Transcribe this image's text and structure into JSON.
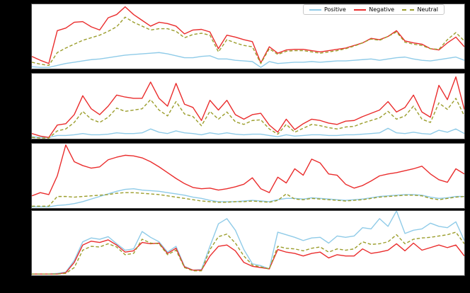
{
  "figure": {
    "background_color": "#000000",
    "panel_color": "#ffffff",
    "note": "Four vertically stacked line subplots. No titles, axis labels or tick labels are visible (figure margins are solid black).",
    "legend": {
      "position": "top-right",
      "items": [
        {
          "label": "Positive",
          "color": "#8fcbe8",
          "line_style": "solid"
        },
        {
          "label": "Negative",
          "color": "#ea2c2c",
          "line_style": "solid"
        },
        {
          "label": "Neutral",
          "color": "#9b9d2b",
          "line_style": "dashed"
        }
      ]
    }
  },
  "chart_data": [
    {
      "type": "line",
      "panel": "row 1 of 4",
      "x_count": 52,
      "xlim": [
        0,
        51
      ],
      "ylim": [
        0,
        1
      ],
      "tick_labels_visible": false,
      "grid": false,
      "value_units": "normalized fraction of panel height (estimated from pixels)",
      "series": [
        {
          "name": "Positive",
          "color": "#8fcbe8",
          "line_style": "solid",
          "values": [
            0.03,
            0.02,
            0.02,
            0.05,
            0.08,
            0.1,
            0.12,
            0.14,
            0.15,
            0.17,
            0.19,
            0.21,
            0.22,
            0.23,
            0.24,
            0.25,
            0.23,
            0.2,
            0.17,
            0.17,
            0.19,
            0.2,
            0.15,
            0.15,
            0.13,
            0.12,
            0.11,
            0.02,
            0.11,
            0.08,
            0.09,
            0.1,
            0.1,
            0.11,
            0.1,
            0.11,
            0.12,
            0.12,
            0.13,
            0.14,
            0.15,
            0.13,
            0.15,
            0.17,
            0.18,
            0.15,
            0.13,
            0.12,
            0.14,
            0.16,
            0.18,
            0.13
          ]
        },
        {
          "name": "Negative",
          "color": "#ea2c2c",
          "line_style": "solid",
          "values": [
            0.19,
            0.13,
            0.08,
            0.59,
            0.63,
            0.72,
            0.73,
            0.65,
            0.6,
            0.79,
            0.84,
            0.96,
            0.84,
            0.75,
            0.66,
            0.72,
            0.7,
            0.66,
            0.54,
            0.6,
            0.61,
            0.57,
            0.31,
            0.52,
            0.49,
            0.45,
            0.42,
            0.09,
            0.34,
            0.24,
            0.29,
            0.3,
            0.3,
            0.28,
            0.26,
            0.28,
            0.3,
            0.32,
            0.36,
            0.4,
            0.47,
            0.45,
            0.5,
            0.59,
            0.43,
            0.4,
            0.38,
            0.31,
            0.29,
            0.4,
            0.49,
            0.34
          ]
        },
        {
          "name": "Neutral",
          "color": "#9b9d2b",
          "line_style": "dashed",
          "values": [
            0.1,
            0.07,
            0.05,
            0.25,
            0.32,
            0.38,
            0.44,
            0.48,
            0.52,
            0.58,
            0.65,
            0.8,
            0.72,
            0.66,
            0.6,
            0.62,
            0.62,
            0.58,
            0.48,
            0.53,
            0.55,
            0.52,
            0.26,
            0.45,
            0.4,
            0.36,
            0.34,
            0.08,
            0.31,
            0.22,
            0.27,
            0.28,
            0.28,
            0.26,
            0.24,
            0.26,
            0.28,
            0.31,
            0.35,
            0.4,
            0.46,
            0.44,
            0.5,
            0.57,
            0.41,
            0.38,
            0.36,
            0.31,
            0.3,
            0.45,
            0.56,
            0.43
          ]
        }
      ]
    },
    {
      "type": "line",
      "panel": "row 2 of 4",
      "x_count": 52,
      "xlim": [
        0,
        51
      ],
      "ylim": [
        0,
        1
      ],
      "tick_labels_visible": false,
      "grid": false,
      "value_units": "normalized fraction of panel height (estimated from pixels)",
      "series": [
        {
          "name": "Positive",
          "color": "#8fcbe8",
          "line_style": "solid",
          "values": [
            0.03,
            0.02,
            0.02,
            0.05,
            0.05,
            0.06,
            0.08,
            0.06,
            0.06,
            0.07,
            0.09,
            0.08,
            0.08,
            0.09,
            0.15,
            0.1,
            0.08,
            0.12,
            0.09,
            0.08,
            0.06,
            0.09,
            0.07,
            0.09,
            0.07,
            0.06,
            0.07,
            0.07,
            0.05,
            0.03,
            0.06,
            0.04,
            0.05,
            0.06,
            0.06,
            0.05,
            0.05,
            0.06,
            0.06,
            0.07,
            0.08,
            0.09,
            0.16,
            0.09,
            0.08,
            0.1,
            0.08,
            0.07,
            0.13,
            0.1,
            0.15,
            0.08
          ]
        },
        {
          "name": "Negative",
          "color": "#ea2c2c",
          "line_style": "solid",
          "values": [
            0.08,
            0.04,
            0.02,
            0.21,
            0.23,
            0.37,
            0.66,
            0.46,
            0.37,
            0.5,
            0.67,
            0.64,
            0.62,
            0.62,
            0.87,
            0.62,
            0.5,
            0.85,
            0.53,
            0.48,
            0.28,
            0.59,
            0.44,
            0.59,
            0.37,
            0.3,
            0.37,
            0.39,
            0.21,
            0.1,
            0.3,
            0.14,
            0.23,
            0.3,
            0.28,
            0.24,
            0.22,
            0.27,
            0.28,
            0.34,
            0.39,
            0.44,
            0.57,
            0.41,
            0.48,
            0.67,
            0.41,
            0.33,
            0.82,
            0.6,
            0.95,
            0.45
          ]
        },
        {
          "name": "Neutral",
          "color": "#9b9d2b",
          "line_style": "dashed",
          "values": [
            0.02,
            0.01,
            0.01,
            0.12,
            0.15,
            0.25,
            0.42,
            0.3,
            0.25,
            0.33,
            0.47,
            0.42,
            0.44,
            0.46,
            0.6,
            0.44,
            0.35,
            0.57,
            0.38,
            0.34,
            0.2,
            0.42,
            0.3,
            0.41,
            0.26,
            0.22,
            0.28,
            0.29,
            0.15,
            0.07,
            0.22,
            0.1,
            0.16,
            0.22,
            0.2,
            0.17,
            0.15,
            0.18,
            0.19,
            0.24,
            0.28,
            0.32,
            0.42,
            0.3,
            0.35,
            0.5,
            0.3,
            0.25,
            0.55,
            0.45,
            0.62,
            0.35
          ]
        }
      ]
    },
    {
      "type": "line",
      "panel": "row 3 of 4",
      "x_count": 52,
      "xlim": [
        0,
        51
      ],
      "ylim": [
        0,
        1
      ],
      "tick_labels_visible": false,
      "grid": false,
      "value_units": "normalized fraction of panel height (estimated from pixels)",
      "series": [
        {
          "name": "Positive",
          "color": "#8fcbe8",
          "line_style": "solid",
          "values": [
            0.02,
            0.02,
            0.02,
            0.04,
            0.05,
            0.07,
            0.1,
            0.14,
            0.18,
            0.22,
            0.26,
            0.29,
            0.3,
            0.28,
            0.27,
            0.26,
            0.24,
            0.22,
            0.2,
            0.17,
            0.15,
            0.12,
            0.1,
            0.1,
            0.1,
            0.11,
            0.12,
            0.11,
            0.1,
            0.13,
            0.15,
            0.15,
            0.14,
            0.16,
            0.15,
            0.14,
            0.13,
            0.12,
            0.13,
            0.14,
            0.16,
            0.18,
            0.19,
            0.2,
            0.21,
            0.21,
            0.2,
            0.17,
            0.15,
            0.16,
            0.18,
            0.18
          ]
        },
        {
          "name": "Negative",
          "color": "#ea2c2c",
          "line_style": "solid",
          "values": [
            0.19,
            0.24,
            0.21,
            0.5,
            0.98,
            0.72,
            0.66,
            0.62,
            0.64,
            0.75,
            0.79,
            0.82,
            0.81,
            0.78,
            0.72,
            0.64,
            0.55,
            0.46,
            0.38,
            0.32,
            0.3,
            0.31,
            0.28,
            0.3,
            0.33,
            0.37,
            0.47,
            0.3,
            0.24,
            0.48,
            0.39,
            0.61,
            0.51,
            0.76,
            0.7,
            0.53,
            0.51,
            0.37,
            0.31,
            0.35,
            0.42,
            0.5,
            0.53,
            0.55,
            0.58,
            0.61,
            0.65,
            0.53,
            0.44,
            0.4,
            0.61,
            0.53
          ]
        },
        {
          "name": "Neutral",
          "color": "#9b9d2b",
          "line_style": "dashed",
          "values": [
            0.03,
            0.03,
            0.03,
            0.18,
            0.18,
            0.17,
            0.18,
            0.19,
            0.2,
            0.21,
            0.23,
            0.24,
            0.24,
            0.23,
            0.22,
            0.21,
            0.19,
            0.17,
            0.15,
            0.13,
            0.11,
            0.1,
            0.09,
            0.09,
            0.1,
            0.1,
            0.11,
            0.1,
            0.09,
            0.12,
            0.22,
            0.14,
            0.13,
            0.15,
            0.14,
            0.13,
            0.12,
            0.11,
            0.12,
            0.13,
            0.15,
            0.17,
            0.18,
            0.19,
            0.2,
            0.2,
            0.19,
            0.15,
            0.13,
            0.15,
            0.17,
            0.18
          ]
        }
      ]
    },
    {
      "type": "line",
      "panel": "row 4 of 4",
      "x_count": 52,
      "xlim": [
        0,
        51
      ],
      "ylim": [
        0,
        1
      ],
      "tick_labels_visible": false,
      "grid": false,
      "value_units": "normalized fraction of panel height (estimated from pixels)",
      "series": [
        {
          "name": "Positive",
          "color": "#8fcbe8",
          "line_style": "solid",
          "values": [
            0.02,
            0.02,
            0.02,
            0.03,
            0.05,
            0.23,
            0.52,
            0.58,
            0.56,
            0.6,
            0.49,
            0.39,
            0.41,
            0.68,
            0.59,
            0.52,
            0.36,
            0.45,
            0.14,
            0.08,
            0.09,
            0.45,
            0.8,
            0.88,
            0.7,
            0.4,
            0.18,
            0.15,
            0.1,
            0.67,
            0.63,
            0.59,
            0.54,
            0.58,
            0.59,
            0.5,
            0.61,
            0.59,
            0.61,
            0.74,
            0.72,
            0.88,
            0.76,
            1.0,
            0.65,
            0.7,
            0.72,
            0.81,
            0.76,
            0.74,
            0.83,
            0.54
          ]
        },
        {
          "name": "Negative",
          "color": "#ea2c2c",
          "line_style": "solid",
          "values": [
            0.02,
            0.02,
            0.02,
            0.02,
            0.04,
            0.2,
            0.47,
            0.53,
            0.51,
            0.55,
            0.47,
            0.36,
            0.38,
            0.51,
            0.49,
            0.5,
            0.34,
            0.42,
            0.13,
            0.08,
            0.08,
            0.3,
            0.45,
            0.47,
            0.38,
            0.2,
            0.14,
            0.12,
            0.1,
            0.4,
            0.36,
            0.34,
            0.3,
            0.34,
            0.36,
            0.27,
            0.32,
            0.3,
            0.3,
            0.41,
            0.34,
            0.36,
            0.39,
            0.49,
            0.38,
            0.5,
            0.39,
            0.43,
            0.47,
            0.43,
            0.47,
            0.3
          ]
        },
        {
          "name": "Neutral",
          "color": "#9b9d2b",
          "line_style": "dashed",
          "values": [
            0.02,
            0.02,
            0.02,
            0.02,
            0.03,
            0.12,
            0.39,
            0.45,
            0.44,
            0.49,
            0.44,
            0.32,
            0.34,
            0.56,
            0.5,
            0.49,
            0.32,
            0.39,
            0.12,
            0.07,
            0.07,
            0.4,
            0.6,
            0.64,
            0.5,
            0.3,
            0.16,
            0.13,
            0.1,
            0.45,
            0.42,
            0.41,
            0.38,
            0.42,
            0.44,
            0.36,
            0.41,
            0.39,
            0.41,
            0.52,
            0.48,
            0.49,
            0.52,
            0.63,
            0.49,
            0.56,
            0.58,
            0.59,
            0.61,
            0.63,
            0.67,
            0.49
          ]
        }
      ]
    }
  ]
}
